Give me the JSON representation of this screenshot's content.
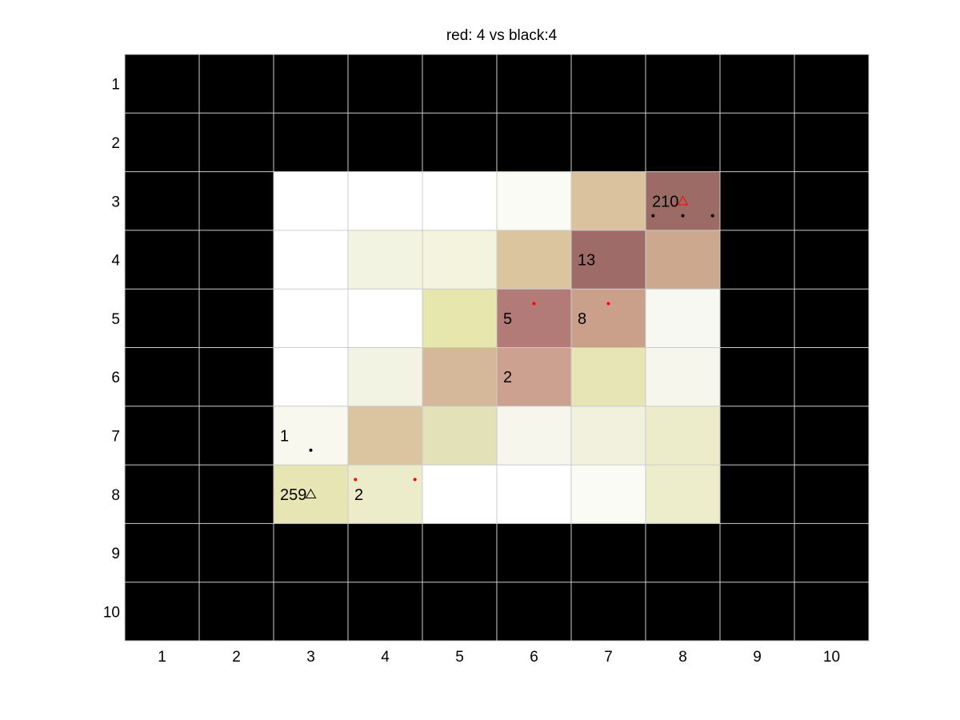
{
  "chart_data": {
    "type": "heatmap",
    "title": "red: 4 vs black:4",
    "x_ticks": [
      "1",
      "2",
      "3",
      "4",
      "5",
      "6",
      "7",
      "8",
      "9",
      "10"
    ],
    "y_ticks": [
      "1",
      "2",
      "3",
      "4",
      "5",
      "6",
      "7",
      "8",
      "9",
      "10"
    ],
    "grid": true,
    "grid_color": "#cccccc",
    "cells": [
      [
        "#000000",
        "#000000",
        "#000000",
        "#000000",
        "#000000",
        "#000000",
        "#000000",
        "#000000",
        "#000000",
        "#000000"
      ],
      [
        "#000000",
        "#000000",
        "#000000",
        "#000000",
        "#000000",
        "#000000",
        "#000000",
        "#000000",
        "#000000",
        "#000000"
      ],
      [
        "#000000",
        "#000000",
        "#ffffff",
        "#ffffff",
        "#ffffff",
        "#fbfbf6",
        "#dbc29e",
        "#9c6b66",
        "#000000",
        "#000000"
      ],
      [
        "#000000",
        "#000000",
        "#ffffff",
        "#f3f3e1",
        "#f3f3de",
        "#dbc59f",
        "#9e6b68",
        "#cca88e",
        "#000000",
        "#000000"
      ],
      [
        "#000000",
        "#000000",
        "#ffffff",
        "#ffffff",
        "#e6e6ad",
        "#b37b78",
        "#caa08a",
        "#f8f8f2",
        "#000000",
        "#000000"
      ],
      [
        "#000000",
        "#000000",
        "#ffffff",
        "#f3f3e3",
        "#d4b899",
        "#cda190",
        "#e7e5b6",
        "#f6f6ed",
        "#000000",
        "#000000"
      ],
      [
        "#000000",
        "#000000",
        "#f8f8ef",
        "#dbc4a0",
        "#e2e1b8",
        "#f6f6ec",
        "#f1f1de",
        "#ececcb",
        "#000000",
        "#000000"
      ],
      [
        "#000000",
        "#000000",
        "#e6e5b3",
        "#ececcb",
        "#ffffff",
        "#ffffff",
        "#fbfbf6",
        "#ededcc",
        "#000000",
        "#000000"
      ],
      [
        "#000000",
        "#000000",
        "#000000",
        "#000000",
        "#000000",
        "#000000",
        "#000000",
        "#000000",
        "#000000",
        "#000000"
      ],
      [
        "#000000",
        "#000000",
        "#000000",
        "#000000",
        "#000000",
        "#000000",
        "#000000",
        "#000000",
        "#000000",
        "#000000"
      ]
    ],
    "cell_labels": [
      {
        "row": 3,
        "col": 8,
        "text": "210"
      },
      {
        "row": 4,
        "col": 7,
        "text": "13"
      },
      {
        "row": 5,
        "col": 6,
        "text": "5"
      },
      {
        "row": 5,
        "col": 7,
        "text": "8"
      },
      {
        "row": 6,
        "col": 6,
        "text": "2"
      },
      {
        "row": 7,
        "col": 3,
        "text": "1"
      },
      {
        "row": 8,
        "col": 3,
        "text": "259"
      },
      {
        "row": 8,
        "col": 4,
        "text": "2"
      }
    ],
    "markers": [
      {
        "shape": "triangle",
        "x": 8,
        "y": 3,
        "color": "#ff0000"
      },
      {
        "shape": "triangle",
        "x": 3,
        "y": 8,
        "color": "#000000"
      },
      {
        "shape": "dot",
        "x": 7.6,
        "y": 3.25,
        "color": "#000000"
      },
      {
        "shape": "dot",
        "x": 8.0,
        "y": 3.25,
        "color": "#000000"
      },
      {
        "shape": "dot",
        "x": 8.4,
        "y": 3.25,
        "color": "#000000"
      },
      {
        "shape": "dot",
        "x": 3.0,
        "y": 7.25,
        "color": "#000000"
      },
      {
        "shape": "dot",
        "x": 6.0,
        "y": 4.75,
        "color": "#ff0000"
      },
      {
        "shape": "dot",
        "x": 7.0,
        "y": 4.75,
        "color": "#ff0000"
      },
      {
        "shape": "dot",
        "x": 3.6,
        "y": 7.75,
        "color": "#ff0000"
      },
      {
        "shape": "dot",
        "x": 4.4,
        "y": 7.75,
        "color": "#ff0000"
      }
    ]
  }
}
